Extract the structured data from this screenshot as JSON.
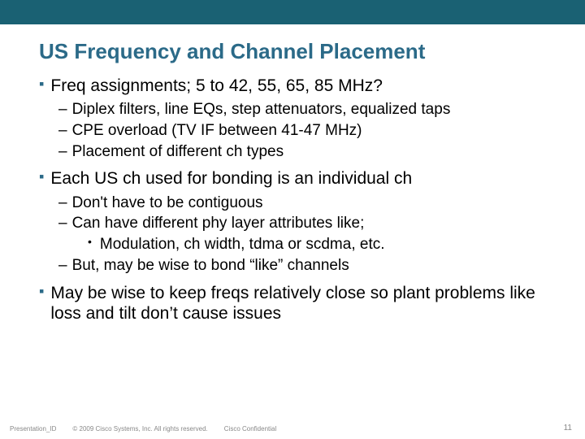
{
  "colors": {
    "bar": "#1a6173",
    "title": "#2b6a88",
    "text": "#000000",
    "footer": "#888888"
  },
  "title": "US Frequency and Channel Placement",
  "b1": {
    "text": "Freq assignments; 5 to 42, 55, 65, 85 MHz?",
    "sub": [
      "Diplex filters, line EQs, step attenuators, equalized taps",
      "CPE overload (TV IF between 41-47 MHz)",
      "Placement of different ch types"
    ]
  },
  "b2": {
    "text": "Each US ch used for bonding is an individual ch",
    "sub1": "Don't have to be contiguous",
    "sub2": "Can have different phy layer attributes like;",
    "sub2a": "Modulation, ch width, tdma or scdma, etc.",
    "sub3": "But, may be wise to bond “like” channels"
  },
  "b3": {
    "text": "May be wise to keep freqs relatively close so plant problems like loss and tilt don’t cause issues"
  },
  "footer": {
    "left": "Presentation_ID",
    "mid": "© 2009 Cisco Systems, Inc. All rights reserved.",
    "conf": "Cisco Confidential",
    "page": "11"
  }
}
